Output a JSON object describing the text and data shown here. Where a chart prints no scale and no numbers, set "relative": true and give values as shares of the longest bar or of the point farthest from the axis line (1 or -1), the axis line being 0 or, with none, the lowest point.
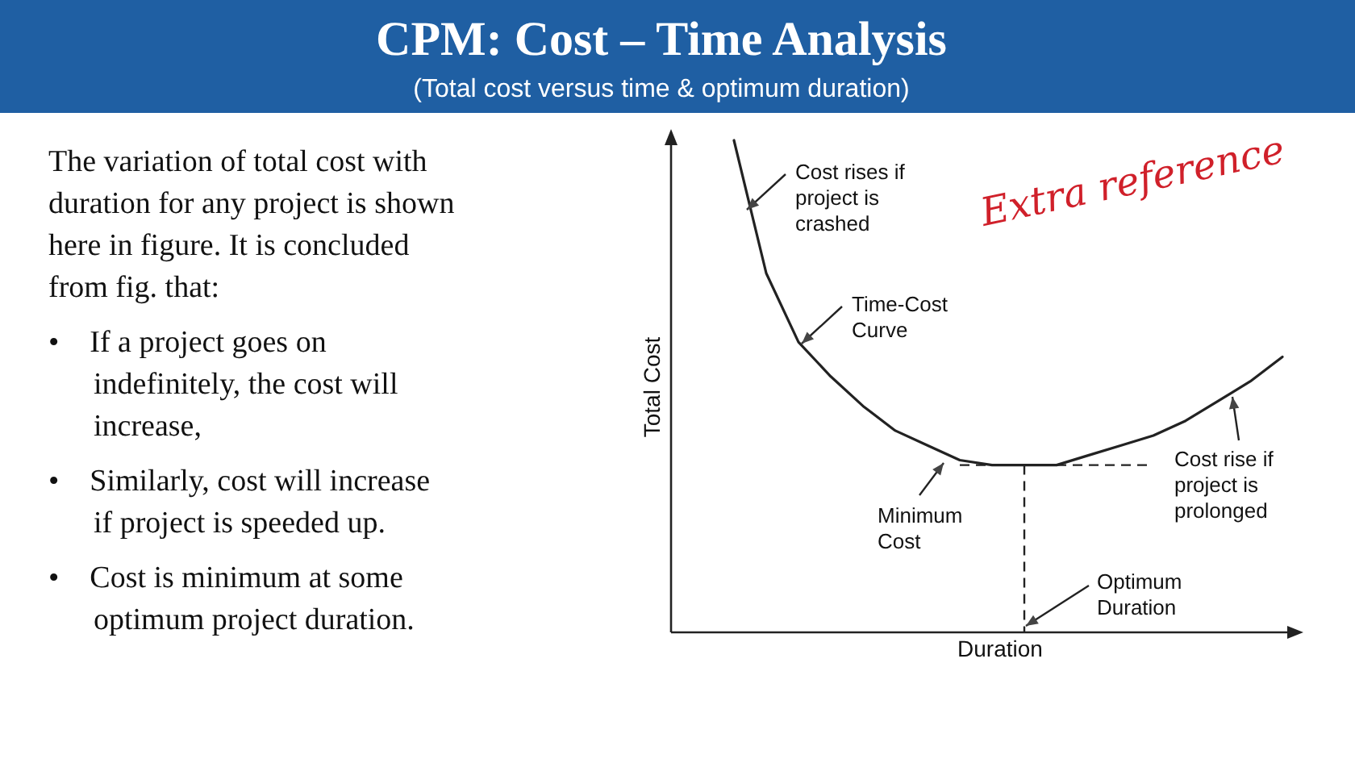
{
  "chart_data": {
    "type": "line",
    "title": "CPM: Cost – Time Analysis",
    "subtitle": "(Total cost versus time & optimum duration)",
    "xlabel": "Duration",
    "ylabel": "Total Cost",
    "relative": true,
    "categories": [
      null,
      null,
      null,
      null,
      null,
      null,
      null,
      null,
      null,
      null,
      null,
      null,
      null,
      null,
      null,
      null,
      null,
      null
    ],
    "series": [
      {
        "color": "#222222",
        "values": [
          1,
          0.73,
          0.59,
          0.52,
          0.46,
          0.41,
          0.38,
          0.35,
          0.34,
          0.34,
          0.34,
          0.36,
          0.38,
          0.4,
          0.43,
          0.47,
          0.51,
          0.56
        ]
      }
    ],
    "ref_lines": [
      {
        "axis": "y",
        "value": 0.34,
        "line_style": "dashed",
        "color": "#222222"
      }
    ],
    "annotations": [
      "The variation of total cost with duration for any project is shown here in figure. It is concluded from fig. that:",
      "• If a project goes on indefinitely, the cost will increase,",
      "• Similarly, cost will increase if project is speeded up.",
      "• Cost is minimum at some optimum project duration.",
      "Cost rises if project is crashed",
      "Time-Cost Curve",
      "Minimum Cost",
      "Cost rise if project is prolonged",
      "Optimum Duration",
      "Extra reference"
    ]
  }
}
